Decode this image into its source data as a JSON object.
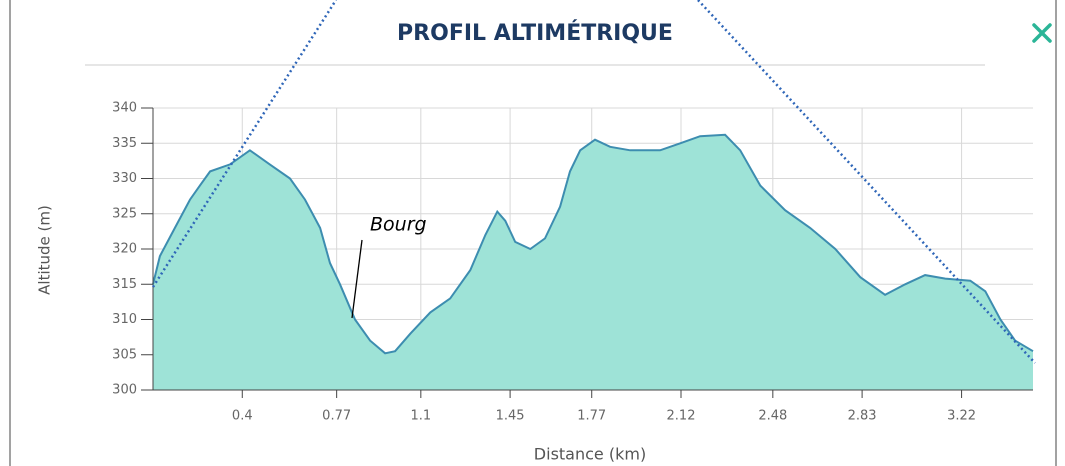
{
  "chart_data": {
    "type": "area",
    "title": "PROFIL ALTIMÉTRIQUE",
    "x_label": "Distance (km)",
    "y_label": "Altitude (m)",
    "annotation": "Bourg",
    "color": "#9ee3d7",
    "line_color": "#3d8db0",
    "grid": true,
    "xlim": [
      0.05,
      3.5
    ],
    "ylim": [
      300,
      340
    ],
    "xticks": [
      0.4,
      0.77,
      1.1,
      1.45,
      1.77,
      2.12,
      2.48,
      2.83,
      3.22
    ],
    "yticks": [
      300,
      305,
      310,
      315,
      320,
      325,
      330,
      335,
      340
    ],
    "x": [
      0.05,
      0.077,
      0.136,
      0.195,
      0.234,
      0.274,
      0.352,
      0.43,
      0.508,
      0.587,
      0.646,
      0.705,
      0.744,
      0.783,
      0.842,
      0.901,
      0.96,
      0.999,
      1.059,
      1.137,
      1.215,
      1.294,
      1.353,
      1.4,
      1.431,
      1.47,
      1.529,
      1.587,
      1.646,
      1.685,
      1.725,
      1.783,
      1.842,
      1.921,
      2.038,
      2.117,
      2.195,
      2.293,
      2.352,
      2.431,
      2.528,
      2.626,
      2.725,
      2.823,
      2.92,
      2.999,
      3.077,
      3.156,
      3.254,
      3.313,
      3.372,
      3.43,
      3.5
    ],
    "values": [
      315,
      319,
      323,
      327,
      329,
      331,
      332,
      334,
      332,
      330,
      327,
      323,
      318,
      315,
      310,
      307,
      305.2,
      305.5,
      308,
      311,
      313,
      317,
      322,
      325.3,
      324,
      321,
      320,
      321.5,
      326,
      331,
      334,
      335.5,
      334.5,
      334,
      334,
      335,
      336,
      336.2,
      334,
      329,
      325.5,
      323,
      320,
      316,
      313.5,
      315,
      316.3,
      315.8,
      315.5,
      314,
      310,
      307,
      305.5
    ]
  }
}
